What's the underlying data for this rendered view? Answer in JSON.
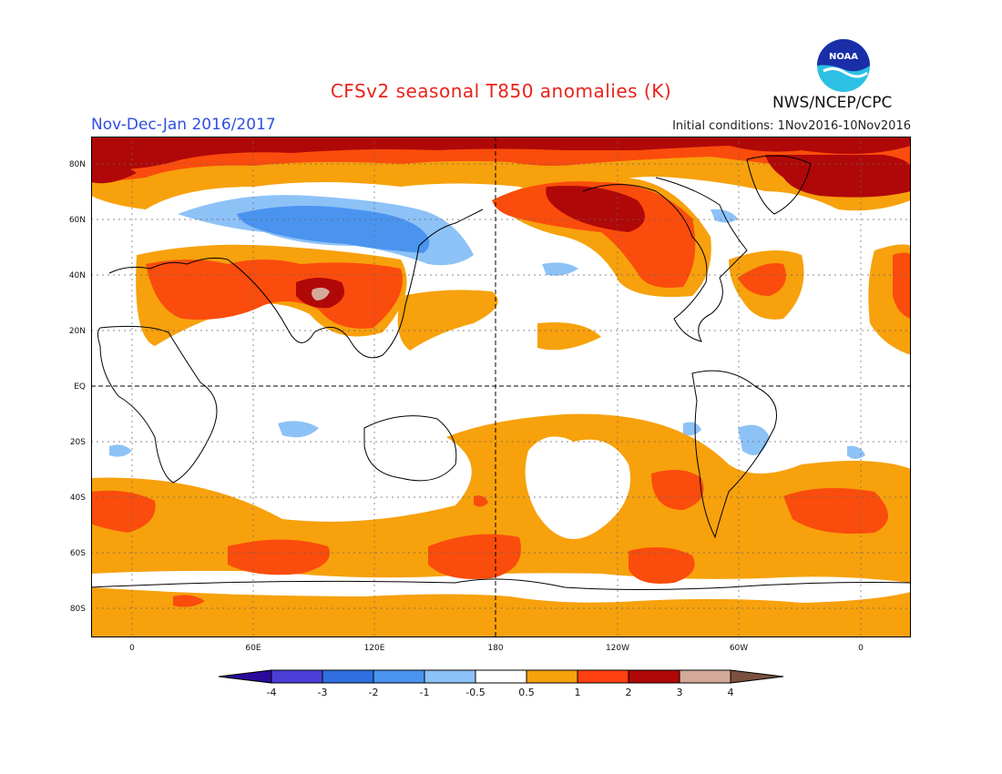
{
  "header": {
    "title": "CFSv2 seasonal T850 anomalies (K)",
    "season": "Nov-Dec-Jan 2016/2017",
    "initial_conditions": "Initial conditions: 1Nov2016-10Nov2016",
    "agency": "NWS/NCEP/CPC",
    "logo_text": "NOAA"
  },
  "map": {
    "lat_labels": [
      "80N",
      "60N",
      "40N",
      "20N",
      "EQ",
      "20S",
      "40S",
      "60S",
      "80S"
    ],
    "lon_labels": [
      "0",
      "60E",
      "120E",
      "180",
      "120W",
      "60W",
      "0"
    ]
  },
  "legend": {
    "labels": [
      "-4",
      "-3",
      "-2",
      "-1",
      "-0.5",
      "0.5",
      "1",
      "2",
      "3",
      "4"
    ],
    "colors": [
      "#2a0a9a",
      "#4b3fd8",
      "#2f6fe0",
      "#4a94f0",
      "#8dc2f7",
      "#ffffff",
      "#f7a10c",
      "#ff4010",
      "#b00808",
      "#d3aa9a",
      "#7a5040"
    ]
  },
  "colors": {
    "warm1": "#f7a10c",
    "warm2": "#fa4c0c",
    "warm3": "#b00808",
    "warm4": "#d3aa9a",
    "cool1": "#8dc2f7",
    "cool2": "#4a94f0",
    "title": "#e8231c",
    "season": "#2f4fe0"
  }
}
